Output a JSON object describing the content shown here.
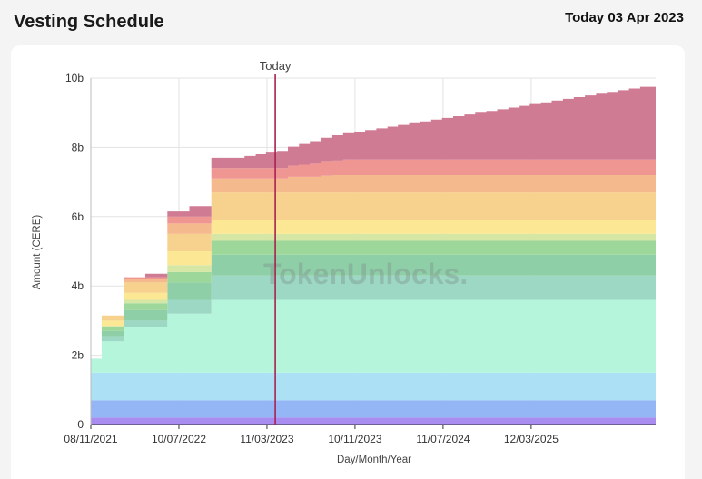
{
  "header": {
    "title": "Vesting Schedule",
    "today_label": "Today 03 Apr 2023"
  },
  "watermark": "TokenUnlocks.",
  "chart_data": {
    "type": "area",
    "stacked": true,
    "title": "",
    "xlabel": "Day/Month/Year",
    "ylabel": "Amount (CERE)",
    "today_marker_label": "Today",
    "today_date": "2023-04-03",
    "x_ticks": [
      {
        "date": "2021-11-08",
        "label": "08/11/2021"
      },
      {
        "date": "2022-07-10",
        "label": "10/07/2022"
      },
      {
        "date": "2023-03-11",
        "label": "11/03/2023"
      },
      {
        "date": "2023-11-10",
        "label": "10/11/2023"
      },
      {
        "date": "2024-07-11",
        "label": "11/07/2024"
      },
      {
        "date": "2025-03-12",
        "label": "12/03/2025"
      }
    ],
    "xlim": [
      "2021-11-08",
      "2026-02-20"
    ],
    "y_ticks": [
      0,
      2,
      4,
      6,
      8,
      10
    ],
    "y_tick_labels": [
      "0",
      "2b",
      "4b",
      "6b",
      "8b",
      "10b"
    ],
    "ylim": [
      0,
      10
    ],
    "y_unit": "billion CERE",
    "grid": true,
    "x": [
      "2021-11-08",
      "2021-12-08",
      "2022-01-08",
      "2022-02-08",
      "2022-03-08",
      "2022-04-08",
      "2022-05-08",
      "2022-06-08",
      "2022-07-08",
      "2022-08-08",
      "2022-09-08",
      "2022-10-08",
      "2022-11-08",
      "2022-12-08",
      "2023-01-08",
      "2023-02-08",
      "2023-03-08",
      "2023-04-08",
      "2023-05-08",
      "2023-06-08",
      "2023-07-08",
      "2023-08-08",
      "2023-09-08",
      "2023-10-08",
      "2023-11-08",
      "2023-12-08",
      "2024-01-08",
      "2024-02-08",
      "2024-03-08",
      "2024-04-08",
      "2024-05-08",
      "2024-06-08",
      "2024-07-08",
      "2024-08-08",
      "2024-09-08",
      "2024-10-08",
      "2024-11-08",
      "2024-12-08",
      "2025-01-08",
      "2025-02-08",
      "2025-03-08",
      "2025-04-08",
      "2025-05-08",
      "2025-06-08",
      "2025-07-08",
      "2025-08-08",
      "2025-09-08",
      "2025-10-08",
      "2025-11-08",
      "2025-12-08",
      "2026-01-08",
      "2026-02-08"
    ],
    "series": [
      {
        "color": "#a98cf0",
        "values": [
          0.2,
          0.2,
          0.2,
          0.2,
          0.2,
          0.2,
          0.2,
          0.2,
          0.2,
          0.2,
          0.2,
          0.2,
          0.2,
          0.2,
          0.2,
          0.2,
          0.2,
          0.2,
          0.2,
          0.2,
          0.2,
          0.2,
          0.2,
          0.2,
          0.2,
          0.2,
          0.2,
          0.2,
          0.2,
          0.2,
          0.2,
          0.2,
          0.2,
          0.2,
          0.2,
          0.2,
          0.2,
          0.2,
          0.2,
          0.2,
          0.2,
          0.2,
          0.2,
          0.2,
          0.2,
          0.2,
          0.2,
          0.2,
          0.2,
          0.2,
          0.2,
          0.2
        ]
      },
      {
        "color": "#94b6f5",
        "values": [
          0.5,
          0.5,
          0.5,
          0.5,
          0.5,
          0.5,
          0.5,
          0.5,
          0.5,
          0.5,
          0.5,
          0.5,
          0.5,
          0.5,
          0.5,
          0.5,
          0.5,
          0.5,
          0.5,
          0.5,
          0.5,
          0.5,
          0.5,
          0.5,
          0.5,
          0.5,
          0.5,
          0.5,
          0.5,
          0.5,
          0.5,
          0.5,
          0.5,
          0.5,
          0.5,
          0.5,
          0.5,
          0.5,
          0.5,
          0.5,
          0.5,
          0.5,
          0.5,
          0.5,
          0.5,
          0.5,
          0.5,
          0.5,
          0.5,
          0.5,
          0.5,
          0.5
        ]
      },
      {
        "color": "#ace0f5",
        "values": [
          0.8,
          0.8,
          0.8,
          0.8,
          0.8,
          0.8,
          0.8,
          0.8,
          0.8,
          0.8,
          0.8,
          0.8,
          0.8,
          0.8,
          0.8,
          0.8,
          0.8,
          0.8,
          0.8,
          0.8,
          0.8,
          0.8,
          0.8,
          0.8,
          0.8,
          0.8,
          0.8,
          0.8,
          0.8,
          0.8,
          0.8,
          0.8,
          0.8,
          0.8,
          0.8,
          0.8,
          0.8,
          0.8,
          0.8,
          0.8,
          0.8,
          0.8,
          0.8,
          0.8,
          0.8,
          0.8,
          0.8,
          0.8,
          0.8,
          0.8,
          0.8,
          0.8
        ]
      },
      {
        "color": "#b5f5dc",
        "values": [
          0.4,
          0.9,
          0.9,
          1.3,
          1.3,
          1.3,
          1.3,
          1.7,
          1.7,
          1.7,
          1.7,
          2.1,
          2.1,
          2.1,
          2.1,
          2.1,
          2.1,
          2.1,
          2.1,
          2.1,
          2.1,
          2.1,
          2.1,
          2.1,
          2.1,
          2.1,
          2.1,
          2.1,
          2.1,
          2.1,
          2.1,
          2.1,
          2.1,
          2.1,
          2.1,
          2.1,
          2.1,
          2.1,
          2.1,
          2.1,
          2.1,
          2.1,
          2.1,
          2.1,
          2.1,
          2.1,
          2.1,
          2.1,
          2.1,
          2.1,
          2.1,
          2.1
        ]
      },
      {
        "color": "#9cd8c4",
        "values": [
          0,
          0.15,
          0.15,
          0.2,
          0.2,
          0.2,
          0.2,
          0.4,
          0.4,
          0.4,
          0.4,
          0.7,
          0.7,
          0.7,
          0.7,
          0.7,
          0.7,
          0.7,
          0.7,
          0.7,
          0.7,
          0.7,
          0.7,
          0.7,
          0.7,
          0.7,
          0.7,
          0.7,
          0.7,
          0.7,
          0.7,
          0.7,
          0.7,
          0.7,
          0.7,
          0.7,
          0.7,
          0.7,
          0.7,
          0.7,
          0.7,
          0.7,
          0.7,
          0.7,
          0.7,
          0.7,
          0.7,
          0.7,
          0.7,
          0.7,
          0.7,
          0.7
        ]
      },
      {
        "color": "#8fcfa8",
        "values": [
          0,
          0.15,
          0.15,
          0.3,
          0.3,
          0.3,
          0.3,
          0.5,
          0.5,
          0.5,
          0.5,
          0.6,
          0.6,
          0.6,
          0.6,
          0.6,
          0.6,
          0.6,
          0.6,
          0.6,
          0.6,
          0.6,
          0.6,
          0.6,
          0.6,
          0.6,
          0.6,
          0.6,
          0.6,
          0.6,
          0.6,
          0.6,
          0.6,
          0.6,
          0.6,
          0.6,
          0.6,
          0.6,
          0.6,
          0.6,
          0.6,
          0.6,
          0.6,
          0.6,
          0.6,
          0.6,
          0.6,
          0.6,
          0.6,
          0.6,
          0.6,
          0.6
        ]
      },
      {
        "color": "#9dd79a",
        "values": [
          0,
          0.1,
          0.1,
          0.2,
          0.2,
          0.2,
          0.2,
          0.3,
          0.3,
          0.3,
          0.3,
          0.4,
          0.4,
          0.4,
          0.4,
          0.4,
          0.4,
          0.4,
          0.4,
          0.4,
          0.4,
          0.4,
          0.4,
          0.4,
          0.4,
          0.4,
          0.4,
          0.4,
          0.4,
          0.4,
          0.4,
          0.4,
          0.4,
          0.4,
          0.4,
          0.4,
          0.4,
          0.4,
          0.4,
          0.4,
          0.4,
          0.4,
          0.4,
          0.4,
          0.4,
          0.4,
          0.4,
          0.4,
          0.4,
          0.4,
          0.4,
          0.4
        ]
      },
      {
        "color": "#d5e6a5",
        "values": [
          0,
          0.05,
          0.05,
          0.1,
          0.1,
          0.1,
          0.1,
          0.2,
          0.2,
          0.2,
          0.2,
          0.2,
          0.2,
          0.2,
          0.2,
          0.2,
          0.2,
          0.2,
          0.2,
          0.2,
          0.2,
          0.2,
          0.2,
          0.2,
          0.2,
          0.2,
          0.2,
          0.2,
          0.2,
          0.2,
          0.2,
          0.2,
          0.2,
          0.2,
          0.2,
          0.2,
          0.2,
          0.2,
          0.2,
          0.2,
          0.2,
          0.2,
          0.2,
          0.2,
          0.2,
          0.2,
          0.2,
          0.2,
          0.2,
          0.2,
          0.2,
          0.2
        ]
      },
      {
        "color": "#fbe794",
        "values": [
          0,
          0.15,
          0.15,
          0.2,
          0.2,
          0.2,
          0.2,
          0.4,
          0.4,
          0.4,
          0.4,
          0.4,
          0.4,
          0.4,
          0.4,
          0.4,
          0.4,
          0.4,
          0.4,
          0.4,
          0.4,
          0.4,
          0.4,
          0.4,
          0.4,
          0.4,
          0.4,
          0.4,
          0.4,
          0.4,
          0.4,
          0.4,
          0.4,
          0.4,
          0.4,
          0.4,
          0.4,
          0.4,
          0.4,
          0.4,
          0.4,
          0.4,
          0.4,
          0.4,
          0.4,
          0.4,
          0.4,
          0.4,
          0.4,
          0.4,
          0.4,
          0.4
        ]
      },
      {
        "color": "#f7d28e",
        "values": [
          0,
          0.15,
          0.15,
          0.3,
          0.3,
          0.3,
          0.3,
          0.5,
          0.5,
          0.5,
          0.5,
          0.8,
          0.8,
          0.8,
          0.8,
          0.8,
          0.8,
          0.8,
          0.8,
          0.8,
          0.8,
          0.8,
          0.8,
          0.8,
          0.8,
          0.8,
          0.8,
          0.8,
          0.8,
          0.8,
          0.8,
          0.8,
          0.8,
          0.8,
          0.8,
          0.8,
          0.8,
          0.8,
          0.8,
          0.8,
          0.8,
          0.8,
          0.8,
          0.8,
          0.8,
          0.8,
          0.8,
          0.8,
          0.8,
          0.8,
          0.8,
          0.8
        ]
      },
      {
        "color": "#f5b98e",
        "values": [
          0,
          0,
          0,
          0.1,
          0.1,
          0.1,
          0.1,
          0.3,
          0.3,
          0.3,
          0.3,
          0.4,
          0.4,
          0.4,
          0.4,
          0.4,
          0.4,
          0.4,
          0.45,
          0.45,
          0.45,
          0.48,
          0.5,
          0.5,
          0.5,
          0.5,
          0.5,
          0.5,
          0.5,
          0.5,
          0.5,
          0.5,
          0.5,
          0.5,
          0.5,
          0.5,
          0.5,
          0.5,
          0.5,
          0.5,
          0.5,
          0.5,
          0.5,
          0.5,
          0.5,
          0.5,
          0.5,
          0.5,
          0.5,
          0.5,
          0.5,
          0.5
        ]
      },
      {
        "color": "#ef9592",
        "values": [
          0,
          0,
          0,
          0.05,
          0.05,
          0.05,
          0.05,
          0.2,
          0.2,
          0.2,
          0.2,
          0.3,
          0.3,
          0.3,
          0.3,
          0.3,
          0.3,
          0.3,
          0.32,
          0.35,
          0.38,
          0.4,
          0.42,
          0.45,
          0.45,
          0.45,
          0.45,
          0.45,
          0.45,
          0.45,
          0.45,
          0.45,
          0.45,
          0.45,
          0.45,
          0.45,
          0.45,
          0.45,
          0.45,
          0.45,
          0.45,
          0.45,
          0.45,
          0.45,
          0.45,
          0.45,
          0.45,
          0.45,
          0.45,
          0.45,
          0.45,
          0.45
        ]
      },
      {
        "color": "#cf7b93",
        "values": [
          0,
          0,
          0,
          0,
          0,
          0.1,
          0.1,
          0.15,
          0.15,
          0.3,
          0.3,
          0.3,
          0.3,
          0.3,
          0.35,
          0.4,
          0.45,
          0.5,
          0.55,
          0.6,
          0.65,
          0.7,
          0.73,
          0.76,
          0.8,
          0.85,
          0.9,
          0.95,
          1.0,
          1.05,
          1.1,
          1.15,
          1.2,
          1.25,
          1.3,
          1.35,
          1.4,
          1.45,
          1.5,
          1.55,
          1.6,
          1.65,
          1.7,
          1.75,
          1.8,
          1.85,
          1.9,
          1.95,
          2.0,
          2.05,
          2.1,
          2.1
        ]
      }
    ]
  }
}
